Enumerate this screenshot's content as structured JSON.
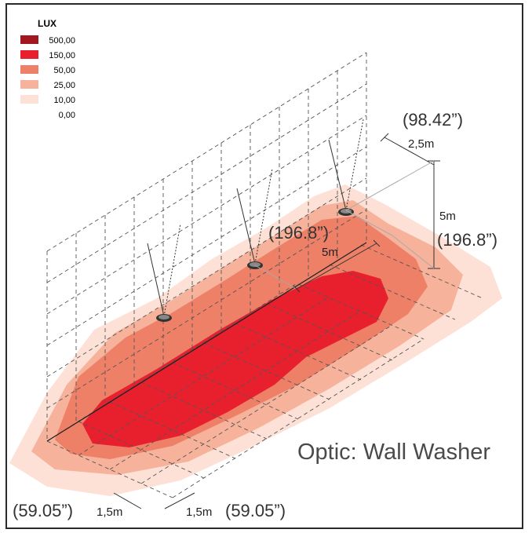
{
  "legend": {
    "title": "LUX",
    "items": [
      {
        "label": "500,00",
        "color": "#a31820"
      },
      {
        "label": "150,00",
        "color": "#e8202e"
      },
      {
        "label": "50,00",
        "color": "#ee8068"
      },
      {
        "label": "25,00",
        "color": "#f6b29a"
      },
      {
        "label": "10,00",
        "color": "#fde1d6"
      },
      {
        "label": "0,00",
        "color": "#ffffff"
      }
    ]
  },
  "dimensions": {
    "offset_m": "2,5m",
    "offset_in": "(98.42”)",
    "height_m": "5m",
    "height_in": "(196.8”)",
    "spacing_m": "5m",
    "spacing_in": "(196.8”)",
    "grid_left_m": "1,5m",
    "grid_left_in": "(59.05”)",
    "grid_right_m": "1,5m",
    "grid_right_in": "(59.05”)"
  },
  "caption": "Optic: Wall Washer",
  "colors": {
    "frame": "#2a2a2a",
    "grid": "#555555"
  }
}
